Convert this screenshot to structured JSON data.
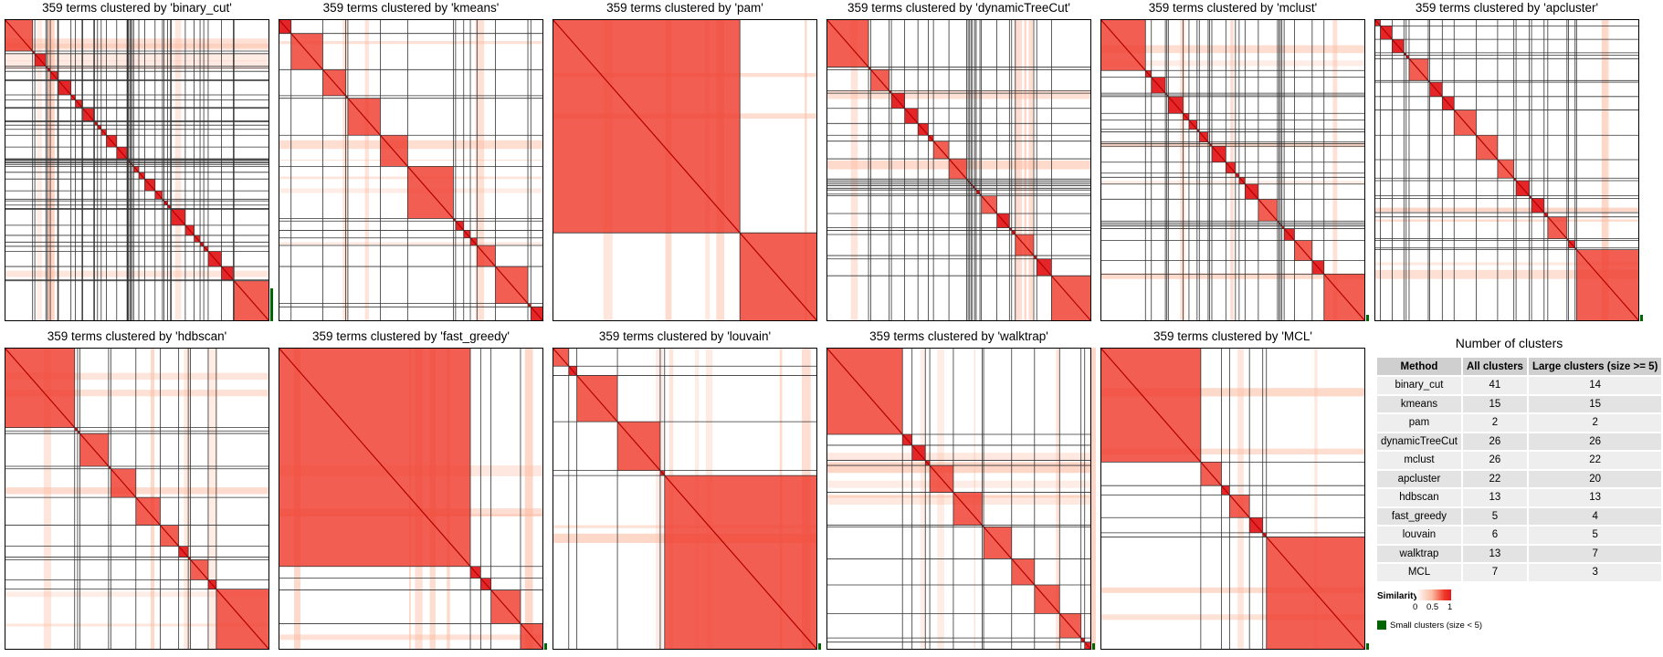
{
  "chart_data": {
    "type": "heatmap",
    "description_free": true,
    "panels": [
      {
        "title": "359 terms clustered by 'binary_cut'",
        "method": "binary_cut",
        "clusters": 41,
        "small_clusters": true
      },
      {
        "title": "359 terms clustered by 'kmeans'",
        "method": "kmeans",
        "clusters": 15,
        "small_clusters": false
      },
      {
        "title": "359 terms clustered by 'pam'",
        "method": "pam",
        "clusters": 2,
        "small_clusters": false
      },
      {
        "title": "359 terms clustered by 'dynamicTreeCut'",
        "method": "dynamicTreeCut",
        "clusters": 26,
        "small_clusters": false
      },
      {
        "title": "359 terms clustered by 'mclust'",
        "method": "mclust",
        "clusters": 26,
        "small_clusters": true
      },
      {
        "title": "359 terms clustered by 'apcluster'",
        "method": "apcluster",
        "clusters": 22,
        "small_clusters": true
      },
      {
        "title": "359 terms clustered by 'hdbscan'",
        "method": "hdbscan",
        "clusters": 13,
        "small_clusters": false
      },
      {
        "title": "359 terms clustered by 'fast_greedy'",
        "method": "fast_greedy",
        "clusters": 5,
        "small_clusters": true
      },
      {
        "title": "359 terms clustered by 'louvain'",
        "method": "louvain",
        "clusters": 6,
        "small_clusters": true
      },
      {
        "title": "359 terms clustered by 'walktrap'",
        "method": "walktrap",
        "clusters": 13,
        "small_clusters": true
      },
      {
        "title": "359 terms clustered by 'MCL'",
        "method": "MCL",
        "clusters": 7,
        "small_clusters": true
      }
    ],
    "summary": {
      "title": "Number of clusters",
      "headers": [
        "Method",
        "All clusters",
        "Large clusters (size >= 5)"
      ],
      "rows": [
        [
          "binary_cut",
          "41",
          "14"
        ],
        [
          "kmeans",
          "15",
          "15"
        ],
        [
          "pam",
          "2",
          "2"
        ],
        [
          "dynamicTreeCut",
          "26",
          "26"
        ],
        [
          "mclust",
          "26",
          "22"
        ],
        [
          "apcluster",
          "22",
          "20"
        ],
        [
          "hdbscan",
          "13",
          "13"
        ],
        [
          "fast_greedy",
          "5",
          "4"
        ],
        [
          "louvain",
          "6",
          "5"
        ],
        [
          "walktrap",
          "13",
          "7"
        ],
        [
          "MCL",
          "7",
          "3"
        ]
      ]
    },
    "legend": {
      "title": "Similarity",
      "ticks": [
        "0",
        "0.5",
        "1"
      ],
      "small_clusters_label": "Small clusters (size < 5)"
    },
    "colors": {
      "low": "#ffffff",
      "mid": "#fcbba1",
      "high": "#e41a1c",
      "small_cluster": "#006400",
      "border": "#333333"
    }
  }
}
